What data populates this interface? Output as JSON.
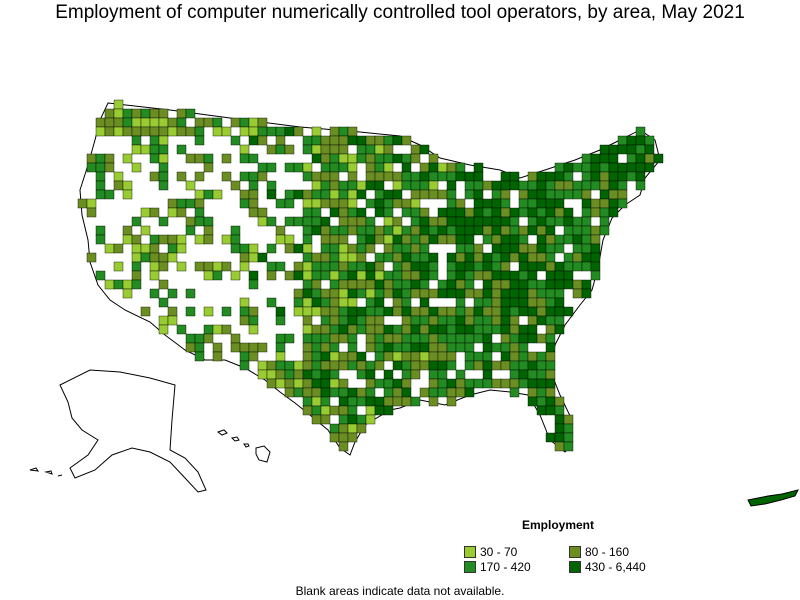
{
  "title": "Employment of computer numerically controlled tool operators, by area, May 2021",
  "legend": {
    "title": "Employment",
    "items": [
      {
        "label": "30 - 70",
        "color": "#99cc33"
      },
      {
        "label": "80 - 160",
        "color": "#6b8e23"
      },
      {
        "label": "170 - 420",
        "color": "#228b22"
      },
      {
        "label": "430 - 6,440",
        "color": "#006400"
      }
    ]
  },
  "footnote": "Blank areas indicate data not available.",
  "map": {
    "no_data_color": "#ffffff",
    "border_color": "#000000"
  }
}
